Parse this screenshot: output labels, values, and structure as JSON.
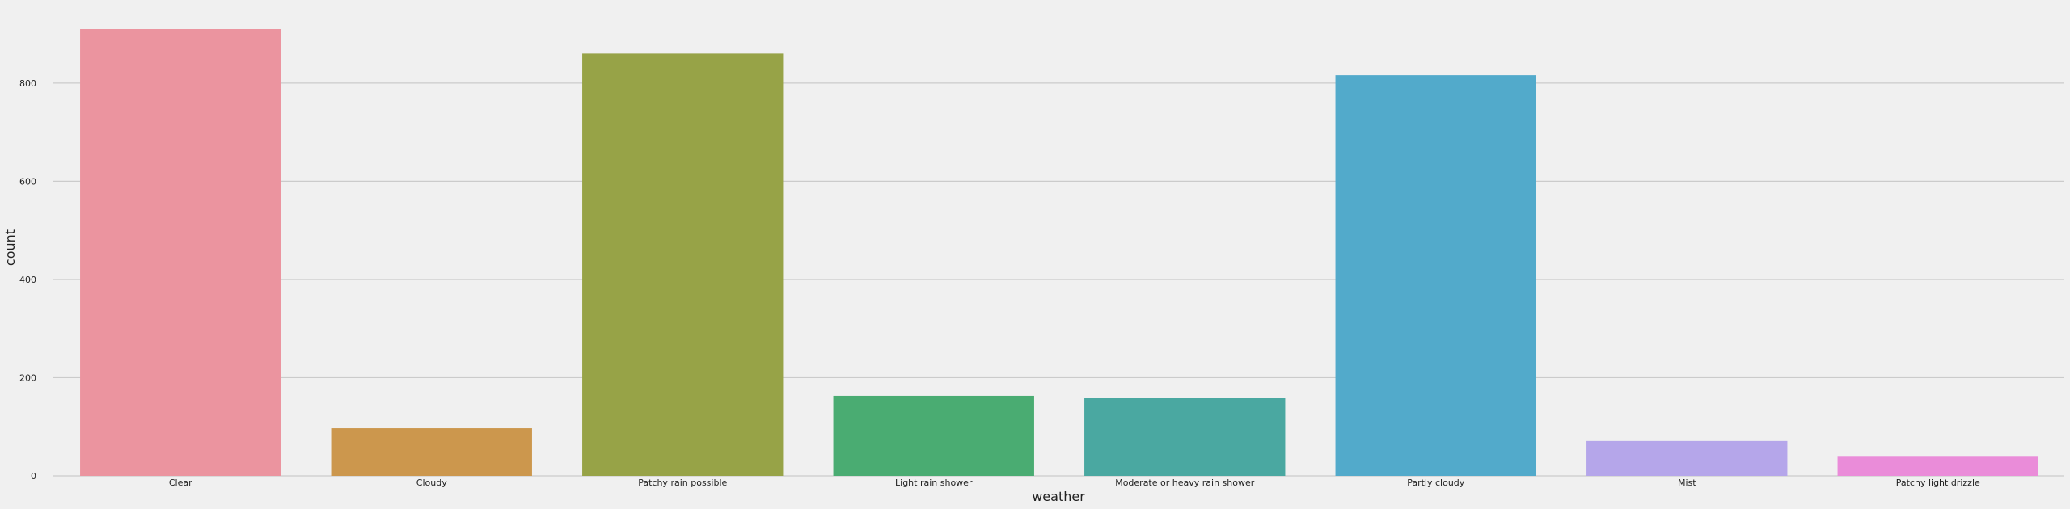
{
  "chart_data": {
    "type": "bar",
    "title": "",
    "xlabel": "weather",
    "ylabel": "count",
    "categories": [
      "Clear",
      "Cloudy",
      "Patchy rain possible",
      "Light rain shower",
      "Moderate or heavy rain shower",
      "Partly cloudy",
      "Mist",
      "Patchy light drizzle"
    ],
    "values": [
      910,
      97,
      860,
      163,
      158,
      816,
      71,
      39
    ],
    "colors": [
      "#eb949f",
      "#cc974d",
      "#97a347",
      "#4aac72",
      "#4aa8a1",
      "#52aacb",
      "#b5a6ea",
      "#ea8cd9"
    ],
    "yticks": [
      0,
      200,
      400,
      600,
      800
    ],
    "ylim": [
      0,
      910
    ],
    "grid": true,
    "background": "#f0f0f0"
  }
}
